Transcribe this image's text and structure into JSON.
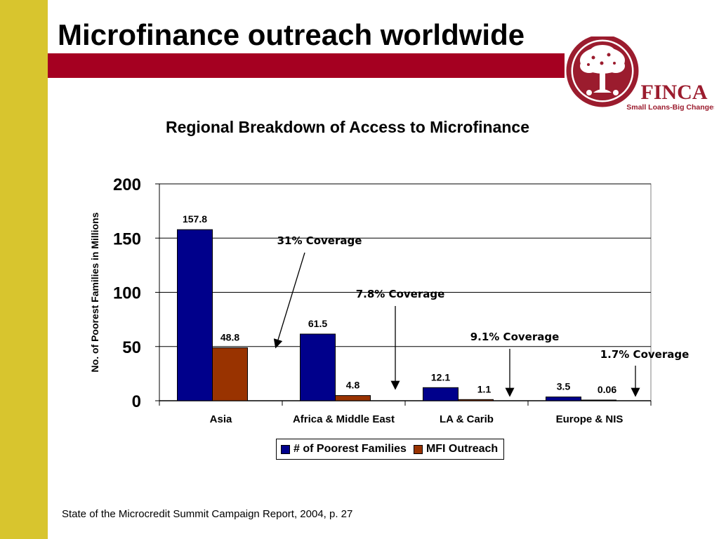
{
  "slide": {
    "title": "Microfinance outreach worldwide",
    "source": "State of the Microcredit Summit Campaign Report, 2004, p. 27"
  },
  "logo": {
    "brand": "FINCA",
    "tagline": "Small Loans-Big Changes"
  },
  "colors": {
    "sidebar": "#d8c52e",
    "title_rule": "#a50021",
    "poorest": "#00008b",
    "outreach": "#993300",
    "logo": "#9b1c2e"
  },
  "chart_data": {
    "type": "bar",
    "title": "Regional Breakdown of Access to Microfinance",
    "ylabel": "No. of Poorest Families in Millions",
    "xlabel": "",
    "ylim": [
      0,
      200
    ],
    "yticks": [
      0,
      50,
      100,
      150,
      200
    ],
    "grid": true,
    "legend_position": "bottom",
    "categories": [
      "Asia",
      "Africa & Middle East",
      "LA & Carib",
      "Europe & NIS"
    ],
    "series": [
      {
        "name": "# of Poorest Families",
        "values": [
          157.8,
          61.5,
          12.1,
          3.5
        ],
        "labels": [
          "157.8",
          "61.5",
          "12.1",
          "3.5"
        ]
      },
      {
        "name": "MFI Outreach",
        "values": [
          48.8,
          4.8,
          1.1,
          0.06
        ],
        "labels": [
          "48.8",
          "4.8",
          "1.1",
          "0.06"
        ]
      }
    ],
    "annotations": [
      {
        "text": "31% Coverage",
        "category": 0
      },
      {
        "text": "7.8% Coverage",
        "category": 1
      },
      {
        "text": "9.1% Coverage",
        "category": 2
      },
      {
        "text": "1.7% Coverage",
        "category": 3
      }
    ]
  }
}
